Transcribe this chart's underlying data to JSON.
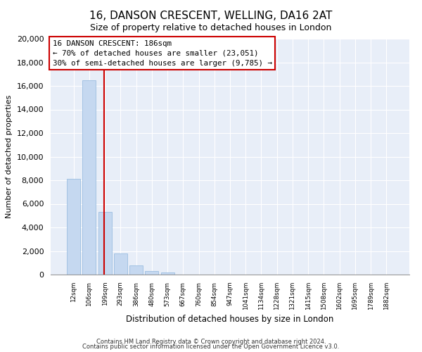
{
  "title": "16, DANSON CRESCENT, WELLING, DA16 2AT",
  "subtitle": "Size of property relative to detached houses in London",
  "xlabel": "Distribution of detached houses by size in London",
  "ylabel": "Number of detached properties",
  "bar_labels": [
    "12sqm",
    "106sqm",
    "199sqm",
    "293sqm",
    "386sqm",
    "480sqm",
    "573sqm",
    "667sqm",
    "760sqm",
    "854sqm",
    "947sqm",
    "1041sqm",
    "1134sqm",
    "1228sqm",
    "1321sqm",
    "1415sqm",
    "1508sqm",
    "1602sqm",
    "1695sqm",
    "1789sqm",
    "1882sqm"
  ],
  "bar_values": [
    8100,
    16500,
    5300,
    1800,
    750,
    280,
    150,
    0,
    0,
    0,
    0,
    0,
    0,
    0,
    0,
    0,
    0,
    0,
    0,
    0,
    0
  ],
  "bar_color": "#c5d8f0",
  "bar_edge_color": "#9bbde0",
  "property_line_label": "16 DANSON CRESCENT: 186sqm",
  "annotation_line1": "← 70% of detached houses are smaller (23,051)",
  "annotation_line2": "30% of semi-detached houses are larger (9,785) →",
  "box_facecolor": "white",
  "box_edgecolor": "#cc0000",
  "line_color": "#cc0000",
  "ylim": [
    0,
    20000
  ],
  "yticks": [
    0,
    2000,
    4000,
    6000,
    8000,
    10000,
    12000,
    14000,
    16000,
    18000,
    20000
  ],
  "footer1": "Contains HM Land Registry data © Crown copyright and database right 2024.",
  "footer2": "Contains public sector information licensed under the Open Government Licence v3.0.",
  "bg_color": "#ffffff",
  "plot_bg_color": "#e8eef8",
  "grid_color": "#ffffff",
  "title_fontsize": 11,
  "subtitle_fontsize": 9
}
